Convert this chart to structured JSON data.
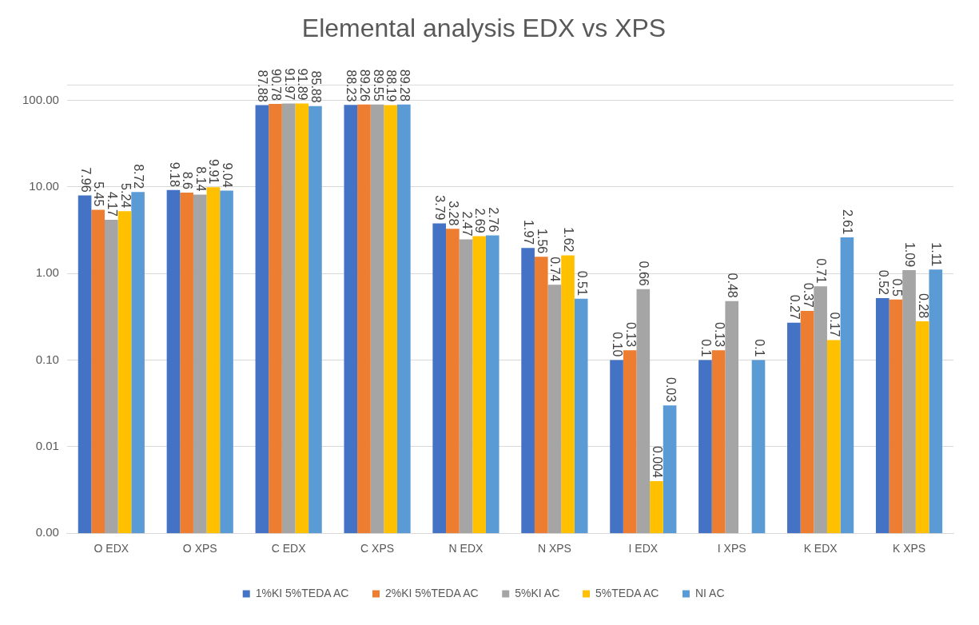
{
  "chart_data": {
    "type": "bar",
    "title": "Elemental analysis EDX vs XPS",
    "categories": [
      "O EDX",
      "O XPS",
      "C EDX",
      "C XPS",
      "N EDX",
      "N XPS",
      "I EDX",
      "I XPS",
      "K EDX",
      "K XPS"
    ],
    "series": [
      {
        "name": "1%KI 5%TEDA AC",
        "color": "#4472c4",
        "values": [
          7.96,
          9.18,
          87.88,
          88.23,
          3.79,
          1.97,
          0.1,
          0.1,
          0.27,
          0.52
        ],
        "value_labels": [
          "7.96",
          "9.18",
          "87.88",
          "88.23",
          "3.79",
          "1.97",
          "0.10",
          "0.1",
          "0.27",
          "0.52"
        ]
      },
      {
        "name": "2%KI 5%TEDA AC",
        "color": "#ed7d31",
        "values": [
          5.45,
          8.6,
          90.78,
          89.26,
          3.28,
          1.56,
          0.13,
          0.13,
          0.37,
          0.5
        ],
        "value_labels": [
          "5.45",
          "8.6",
          "90.78",
          "89.26",
          "3.28",
          "1.56",
          "0.13",
          "0.13",
          "0.37",
          "0.5"
        ]
      },
      {
        "name": "5%KI AC",
        "color": "#a5a5a5",
        "values": [
          4.17,
          8.14,
          91.97,
          89.55,
          2.47,
          0.74,
          0.66,
          0.48,
          0.71,
          1.09
        ],
        "value_labels": [
          "4.17",
          "8.14",
          "91.97",
          "89.55",
          "2.47",
          "0.74",
          "0.66",
          "0.48",
          "0.71",
          "1.09"
        ]
      },
      {
        "name": "5%TEDA AC",
        "color": "#ffc000",
        "values": [
          5.24,
          9.91,
          91.89,
          88.19,
          2.69,
          1.62,
          0.004,
          null,
          0.17,
          0.28
        ],
        "value_labels": [
          "5.24",
          "9.91",
          "91.89",
          "88.19",
          "2.69",
          "1.62",
          "0.004",
          null,
          "0.17",
          "0.28"
        ]
      },
      {
        "name": "NI AC",
        "color": "#5b9bd5",
        "values": [
          8.72,
          9.04,
          85.88,
          89.28,
          2.76,
          0.51,
          0.03,
          0.1,
          2.61,
          1.11
        ],
        "value_labels": [
          "8.72",
          "9.04",
          "85.88",
          "89.28",
          "2.76",
          "0.51",
          "0.03",
          "0.1",
          "2.61",
          "1.11"
        ]
      }
    ],
    "log": true,
    "ylim": [
      0.001,
      150
    ],
    "yticks": [
      {
        "value": 0.001,
        "label": "0.00"
      },
      {
        "value": 0.01,
        "label": "0.01"
      },
      {
        "value": 0.1,
        "label": "0.10"
      },
      {
        "value": 1,
        "label": "1.00"
      },
      {
        "value": 10,
        "label": "10.00"
      },
      {
        "value": 100,
        "label": "100.00"
      }
    ],
    "grid": "y",
    "legend": "bottom"
  }
}
